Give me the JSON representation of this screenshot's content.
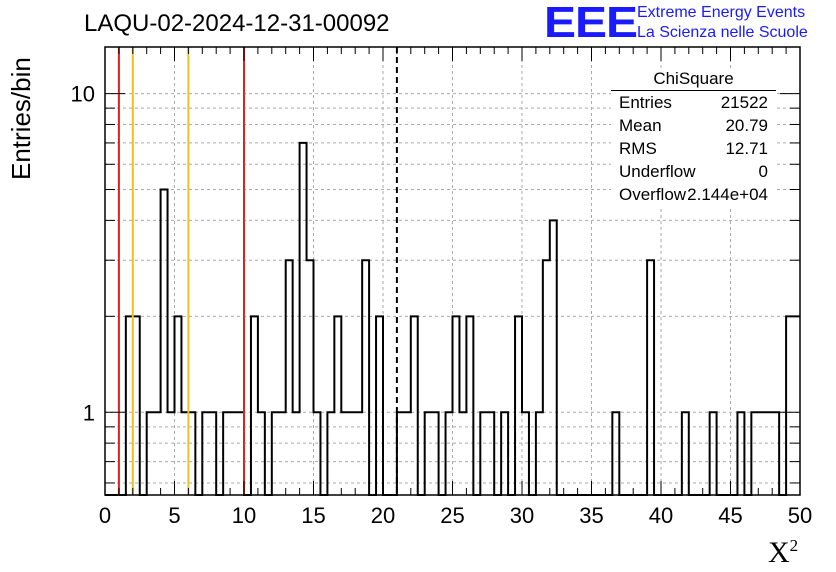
{
  "header": {
    "title": "LAQU-02-2024-12-31-00092"
  },
  "logo": {
    "mark": "EEE",
    "line1": "Extreme Energy Events",
    "line2": "La Scienza nelle Scuole",
    "color": "#1a1aff"
  },
  "axes": {
    "ylabel": "Entries/bin",
    "xlabel": "X",
    "xlabel_sup": "2"
  },
  "stats": {
    "name": "ChiSquare",
    "rows": [
      {
        "key": "Entries",
        "value": "21522"
      },
      {
        "key": "Mean",
        "value": "20.79"
      },
      {
        "key": "RMS",
        "value": "12.71"
      },
      {
        "key": "Underflow",
        "value": "0"
      },
      {
        "key": "Overflow",
        "value": "2.144e+04"
      }
    ]
  },
  "chart_data": {
    "type": "bar",
    "style": "step histogram",
    "x_range": [
      0,
      50
    ],
    "bin_width": 0.5,
    "y_scale": "log",
    "ylim": [
      0.55,
      14
    ],
    "xticks": [
      0,
      5,
      10,
      15,
      20,
      25,
      30,
      35,
      40,
      45,
      50
    ],
    "yticks": [
      1,
      10
    ],
    "ytick_labels": [
      "1",
      "10"
    ],
    "grid": true,
    "bins": [
      {
        "x": 1.5,
        "value": 2
      },
      {
        "x": 2.0,
        "value": 2
      },
      {
        "x": 3.0,
        "value": 1
      },
      {
        "x": 3.5,
        "value": 1
      },
      {
        "x": 4.0,
        "value": 5
      },
      {
        "x": 4.5,
        "value": 1
      },
      {
        "x": 5.0,
        "value": 2
      },
      {
        "x": 5.5,
        "value": 1
      },
      {
        "x": 6.0,
        "value": 1
      },
      {
        "x": 7.0,
        "value": 1
      },
      {
        "x": 7.5,
        "value": 1
      },
      {
        "x": 8.5,
        "value": 1
      },
      {
        "x": 9.0,
        "value": 1
      },
      {
        "x": 9.5,
        "value": 1
      },
      {
        "x": 10.5,
        "value": 2
      },
      {
        "x": 11.0,
        "value": 1
      },
      {
        "x": 12.0,
        "value": 1
      },
      {
        "x": 12.5,
        "value": 1
      },
      {
        "x": 13.0,
        "value": 3
      },
      {
        "x": 13.5,
        "value": 1
      },
      {
        "x": 14.0,
        "value": 7
      },
      {
        "x": 14.5,
        "value": 3
      },
      {
        "x": 15.0,
        "value": 1
      },
      {
        "x": 16.0,
        "value": 1
      },
      {
        "x": 16.5,
        "value": 2
      },
      {
        "x": 17.0,
        "value": 1
      },
      {
        "x": 17.5,
        "value": 1
      },
      {
        "x": 18.0,
        "value": 1
      },
      {
        "x": 18.5,
        "value": 3
      },
      {
        "x": 19.5,
        "value": 2
      },
      {
        "x": 21.0,
        "value": 1
      },
      {
        "x": 21.5,
        "value": 1
      },
      {
        "x": 22.0,
        "value": 2
      },
      {
        "x": 23.0,
        "value": 1
      },
      {
        "x": 23.5,
        "value": 1
      },
      {
        "x": 24.5,
        "value": 1
      },
      {
        "x": 25.0,
        "value": 2
      },
      {
        "x": 25.5,
        "value": 1
      },
      {
        "x": 26.0,
        "value": 2
      },
      {
        "x": 27.0,
        "value": 1
      },
      {
        "x": 27.5,
        "value": 1
      },
      {
        "x": 28.5,
        "value": 1
      },
      {
        "x": 29.5,
        "value": 2
      },
      {
        "x": 30.0,
        "value": 1
      },
      {
        "x": 31.0,
        "value": 1
      },
      {
        "x": 31.5,
        "value": 3
      },
      {
        "x": 32.0,
        "value": 4
      },
      {
        "x": 36.5,
        "value": 1
      },
      {
        "x": 39.0,
        "value": 3
      },
      {
        "x": 41.5,
        "value": 1
      },
      {
        "x": 43.5,
        "value": 1
      },
      {
        "x": 45.5,
        "value": 1
      },
      {
        "x": 46.5,
        "value": 1
      },
      {
        "x": 47.0,
        "value": 1
      },
      {
        "x": 47.5,
        "value": 1
      },
      {
        "x": 48.0,
        "value": 1
      },
      {
        "x": 49.0,
        "value": 2
      },
      {
        "x": 49.5,
        "value": 2
      }
    ],
    "reference_lines": [
      {
        "x": 1,
        "color": "#dd2222",
        "style": "solid"
      },
      {
        "x": 10,
        "color": "#dd2222",
        "style": "solid"
      },
      {
        "x": 2,
        "color": "#f2c01e",
        "style": "solid"
      },
      {
        "x": 6,
        "color": "#f2c01e",
        "style": "solid"
      },
      {
        "x": 21,
        "color": "#000000",
        "style": "dashed"
      }
    ]
  }
}
